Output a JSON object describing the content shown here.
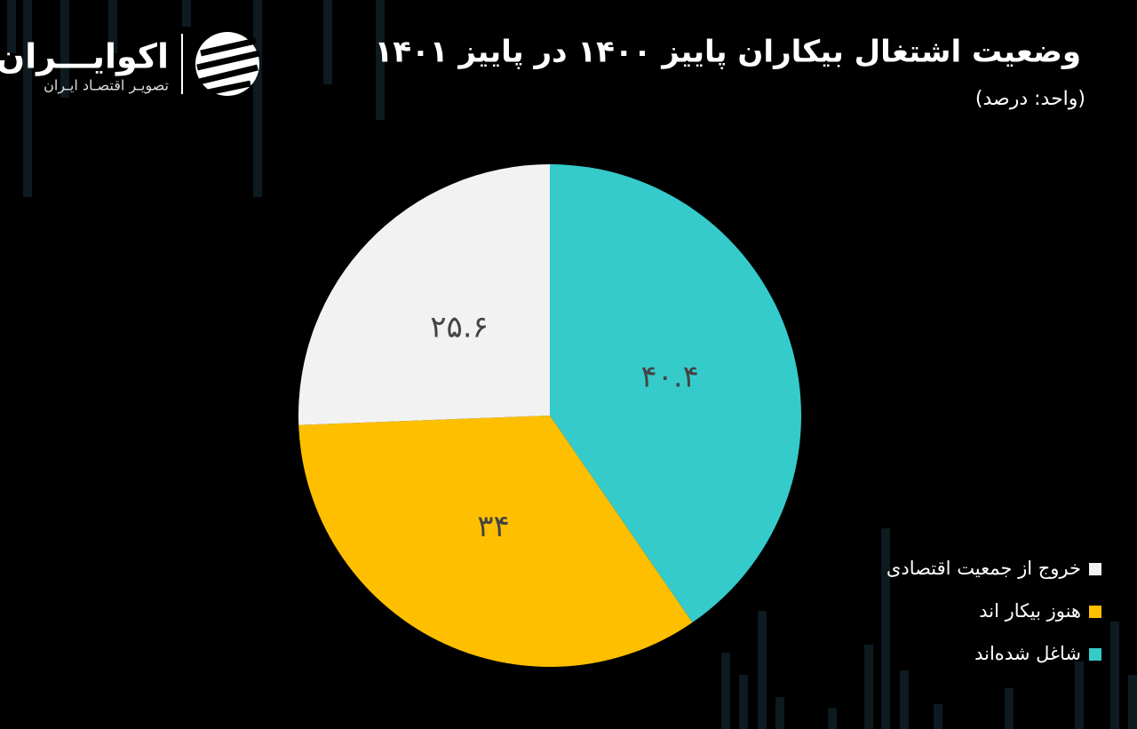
{
  "chart_data": {
    "type": "pie",
    "title": "وضعیت اشتغال بیکاران پاییز ۱۴۰۰ در پاییز ۱۴۰۱",
    "subtitle": "(واحد: درصد)",
    "categories": [
      "شاغل شده‌اند",
      "هنوز بیکار اند",
      "خروج از جمعیت اقتصادی"
    ],
    "values": [
      40.4,
      34,
      25.6
    ],
    "value_labels": [
      "۴۰.۴",
      "۳۴",
      "۲۵.۶"
    ],
    "colors": [
      "#36cbcb",
      "#fdbf00",
      "#f2f2f2"
    ],
    "legend": "bottom-right"
  },
  "logo": {
    "name": "اکوایـــران",
    "tagline": "تصویـر اقتصـاد ایـران"
  }
}
